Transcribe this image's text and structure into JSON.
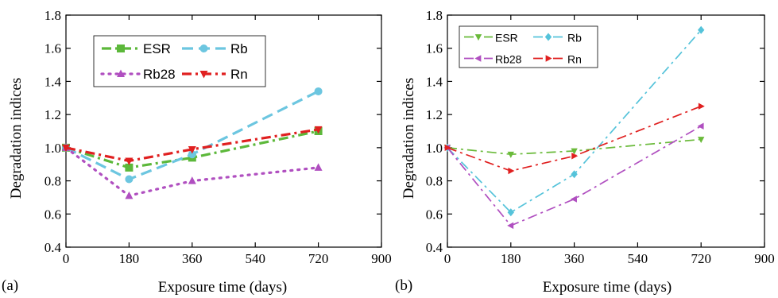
{
  "chart_data": [
    {
      "type": "line",
      "panel_label": "(a)",
      "xlabel": "Exposure time (days)",
      "ylabel": "Degradation indices",
      "xlim": [
        0,
        900
      ],
      "ylim": [
        0.4,
        1.8
      ],
      "xticks": [
        0,
        180,
        360,
        540,
        720,
        900
      ],
      "yticks": [
        0.4,
        0.6,
        0.8,
        1.0,
        1.2,
        1.4,
        1.6,
        1.8
      ],
      "x": [
        0,
        180,
        360,
        720
      ],
      "grid": false,
      "legend_position": "top-left",
      "series": [
        {
          "name": "ESR",
          "values": [
            1.0,
            0.88,
            0.94,
            1.1
          ],
          "color": "#5cb83a",
          "marker": "square",
          "dash": "dashdot"
        },
        {
          "name": "Rb",
          "values": [
            1.0,
            0.81,
            0.96,
            1.34
          ],
          "color": "#6cc6e0",
          "marker": "circle",
          "dash": "dashed"
        },
        {
          "name": "Rb28",
          "values": [
            1.0,
            0.71,
            0.8,
            0.88
          ],
          "color": "#b04fc0",
          "marker": "triangle-up",
          "dash": "dotted"
        },
        {
          "name": "Rn",
          "values": [
            1.0,
            0.92,
            0.99,
            1.11
          ],
          "color": "#e02020",
          "marker": "triangle-down",
          "dash": "dashdot"
        }
      ]
    },
    {
      "type": "line",
      "panel_label": "(b)",
      "xlabel": "Exposure time (days)",
      "ylabel": "Degradation indices",
      "xlim": [
        0,
        900
      ],
      "ylim": [
        0.4,
        1.8
      ],
      "xticks": [
        0,
        180,
        360,
        540,
        720,
        900
      ],
      "yticks": [
        0.4,
        0.6,
        0.8,
        1.0,
        1.2,
        1.4,
        1.6,
        1.8
      ],
      "x": [
        0,
        180,
        360,
        720
      ],
      "grid": false,
      "legend_position": "top-left",
      "series": [
        {
          "name": "ESR",
          "values": [
            1.0,
            0.96,
            0.98,
            1.05
          ],
          "color": "#6aba3a",
          "marker": "triangle-down",
          "dash": "dashdot"
        },
        {
          "name": "Rb",
          "values": [
            1.0,
            0.61,
            0.84,
            1.71
          ],
          "color": "#55c3da",
          "marker": "diamond",
          "dash": "dashdot"
        },
        {
          "name": "Rb28",
          "values": [
            1.0,
            0.53,
            0.69,
            1.13
          ],
          "color": "#b04fc0",
          "marker": "triangle-left",
          "dash": "dashdot"
        },
        {
          "name": "Rn",
          "values": [
            1.0,
            0.86,
            0.95,
            1.25
          ],
          "color": "#e02020",
          "marker": "triangle-right",
          "dash": "dashdot"
        }
      ]
    }
  ]
}
